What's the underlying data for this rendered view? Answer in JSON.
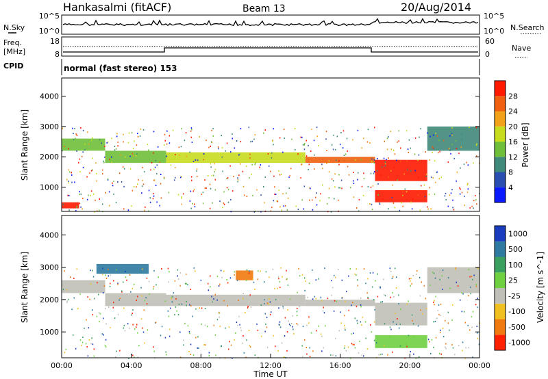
{
  "header": {
    "station": "Hankasalmi (fitACF)",
    "beam": "Beam 13",
    "date": "20/Aug/2014"
  },
  "noise_panel": {
    "left_label": "N.Sky",
    "right_label": "N.Search",
    "left_ticks": [
      "10^5",
      "10^0"
    ],
    "right_ticks": [
      "10^5",
      "10^0"
    ]
  },
  "freq_panel": {
    "left_label_1": "Freq.",
    "left_label_2": "[MHz]",
    "left_ticks": [
      "18",
      "8"
    ],
    "right_label": "Nave",
    "right_ticks": [
      "60",
      "0"
    ]
  },
  "cpid_panel": {
    "label": "CPID",
    "text": "normal (fast stereo) 153"
  },
  "chart_data": [
    {
      "type": "heatmap",
      "title": "Power",
      "ylabel": "Slant Range [km]",
      "xlabel": "",
      "ylim": [
        200,
        4600
      ],
      "yticks": [
        "1000",
        "2000",
        "3000",
        "4000"
      ],
      "colorbar_label": "Power [dB]",
      "colorbar_ticks": [
        "4",
        "8",
        "12",
        "16",
        "20",
        "24",
        "28"
      ],
      "colors": [
        "#0a1aff",
        "#2a4fb0",
        "#3f8a7a",
        "#6fbf3a",
        "#c8dc1e",
        "#f2a21a",
        "#f06010",
        "#ff1a00"
      ],
      "bands": [
        {
          "x": [
            0.0,
            2.5
          ],
          "y": [
            2200,
            2600
          ],
          "level": 3
        },
        {
          "x": [
            2.5,
            6.0
          ],
          "y": [
            1800,
            2200
          ],
          "level": 3
        },
        {
          "x": [
            6.0,
            14.0
          ],
          "y": [
            1800,
            2150
          ],
          "level": 4
        },
        {
          "x": [
            14.0,
            18.0
          ],
          "y": [
            1800,
            2000
          ],
          "level": 6
        },
        {
          "x": [
            18.0,
            21.0
          ],
          "y": [
            1200,
            1900
          ],
          "level": 7
        },
        {
          "x": [
            18.0,
            21.0
          ],
          "y": [
            500,
            900
          ],
          "level": 7
        },
        {
          "x": [
            21.0,
            24.0
          ],
          "y": [
            2200,
            3000
          ],
          "level": 2
        },
        {
          "x": [
            0.0,
            1.0
          ],
          "y": [
            300,
            500
          ],
          "level": 7
        }
      ]
    },
    {
      "type": "heatmap",
      "title": "Velocity",
      "ylabel": "Slant Range [km]",
      "xlabel": "Time UT",
      "ylim": [
        200,
        4600
      ],
      "yticks": [
        "1000",
        "2000",
        "3000",
        "4000"
      ],
      "xticks": [
        "00:00",
        "04:00",
        "08:00",
        "12:00",
        "16:00",
        "20:00",
        "00:00"
      ],
      "colorbar_label": "Velocity [m s^-1]",
      "colorbar_ticks": [
        "1000",
        "500",
        "100",
        "25",
        "-25",
        "-100",
        "-500",
        "-1000"
      ],
      "colors": [
        "#1a3dbf",
        "#2e7aa0",
        "#3aa060",
        "#6fd040",
        "#c0c0b8",
        "#f0c020",
        "#f07a10",
        "#ff2000"
      ],
      "bands": [
        {
          "x": [
            0.0,
            2.5
          ],
          "y": [
            2200,
            2600
          ],
          "level": 4
        },
        {
          "x": [
            2.5,
            6.0
          ],
          "y": [
            1800,
            2200
          ],
          "level": 4
        },
        {
          "x": [
            6.0,
            14.0
          ],
          "y": [
            1800,
            2150
          ],
          "level": 4
        },
        {
          "x": [
            14.0,
            18.0
          ],
          "y": [
            1800,
            2000
          ],
          "level": 4
        },
        {
          "x": [
            18.0,
            21.0
          ],
          "y": [
            1200,
            1900
          ],
          "level": 4
        },
        {
          "x": [
            18.0,
            21.0
          ],
          "y": [
            500,
            900
          ],
          "level": 3
        },
        {
          "x": [
            21.0,
            24.0
          ],
          "y": [
            2200,
            3000
          ],
          "level": 4
        },
        {
          "x": [
            2.0,
            5.0
          ],
          "y": [
            2800,
            3100
          ],
          "level": 1
        },
        {
          "x": [
            10.0,
            11.0
          ],
          "y": [
            2600,
            2900
          ],
          "level": 6
        }
      ]
    }
  ]
}
